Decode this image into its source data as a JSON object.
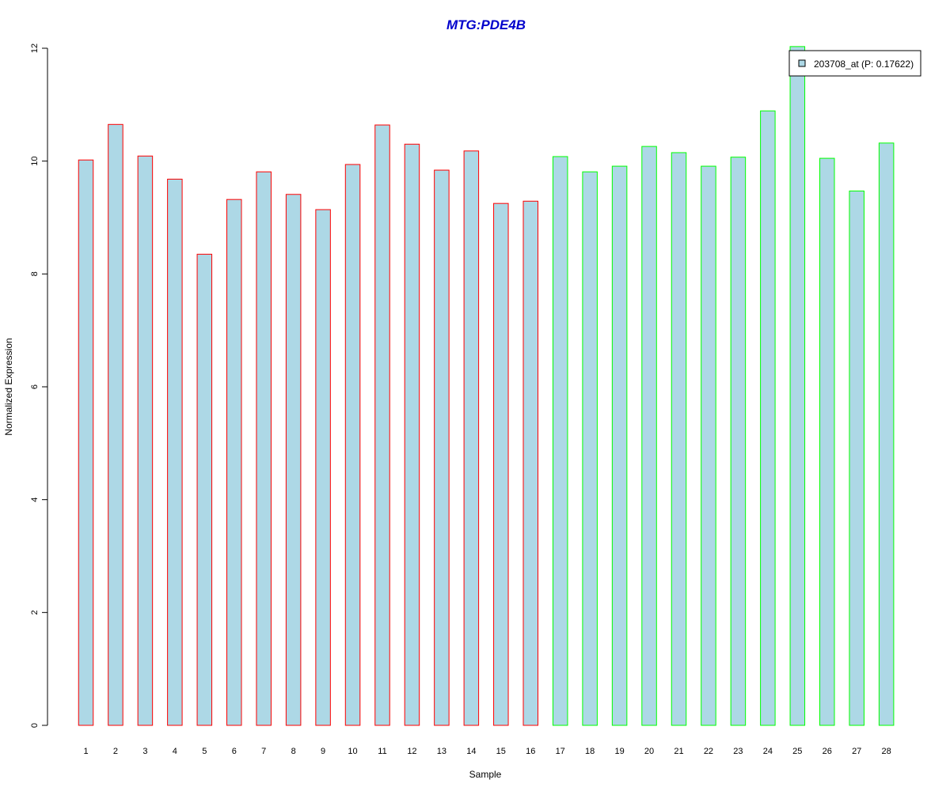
{
  "chart_data": {
    "type": "bar",
    "title": "MTG:PDE4B",
    "xlabel": "Sample",
    "ylabel": "Normalized Expression",
    "ylim": [
      0,
      12
    ],
    "yticks": [
      0,
      2,
      4,
      6,
      8,
      10,
      12
    ],
    "grid": false,
    "legend_position": "top-right",
    "categories": [
      "1",
      "2",
      "3",
      "4",
      "5",
      "6",
      "7",
      "8",
      "9",
      "10",
      "11",
      "12",
      "13",
      "14",
      "15",
      "16",
      "17",
      "18",
      "19",
      "20",
      "21",
      "22",
      "23",
      "24",
      "25",
      "26",
      "27",
      "28"
    ],
    "series": [
      {
        "name": "203708_at (P: 0.17622)",
        "fill_color": "#ADD8E6",
        "values": [
          10.02,
          10.65,
          10.09,
          9.68,
          8.35,
          9.32,
          9.81,
          9.41,
          9.14,
          9.94,
          10.64,
          10.3,
          9.84,
          10.18,
          9.25,
          9.29,
          10.08,
          9.81,
          9.91,
          10.26,
          10.15,
          9.91,
          10.07,
          10.89,
          12.03,
          10.05,
          9.47,
          10.32
        ]
      }
    ],
    "group_outline_colors": [
      "#FF0000",
      "#FF0000",
      "#FF0000",
      "#FF0000",
      "#FF0000",
      "#FF0000",
      "#FF0000",
      "#FF0000",
      "#FF0000",
      "#FF0000",
      "#FF0000",
      "#FF0000",
      "#FF0000",
      "#FF0000",
      "#FF0000",
      "#FF0000",
      "#00FF00",
      "#00FF00",
      "#00FF00",
      "#00FF00",
      "#00FF00",
      "#00FF00",
      "#00FF00",
      "#00FF00",
      "#00FF00",
      "#00FF00",
      "#00FF00",
      "#00FF00"
    ],
    "title_color": "#0000CC"
  }
}
